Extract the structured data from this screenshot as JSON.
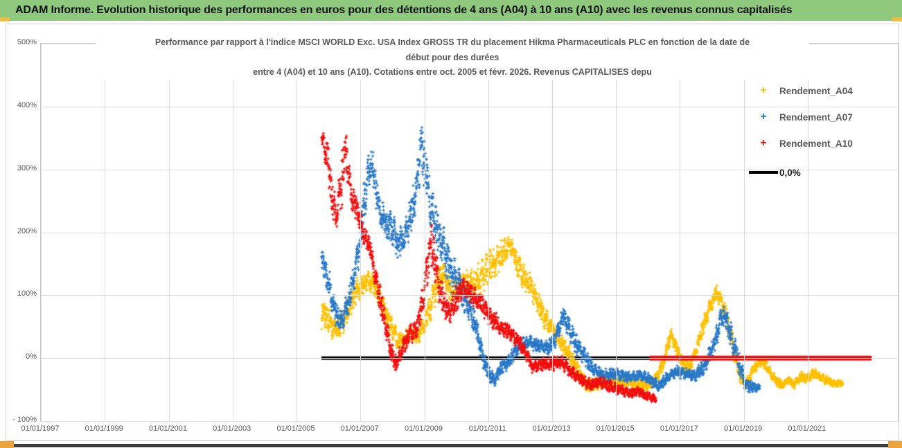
{
  "header": {
    "title": "ADAM Informe. Evolution historique des performances en euros pour des détentions de 4 ans (A04) à 10 ans (A10) avec les revenus connus capitalisés"
  },
  "chart": {
    "title_line1": "Performance par rapport à l'indice MSCI WORLD Exc. USA Index GROSS TR  du placement Hikma Pharmaceuticals PLC en fonction de la date de",
    "title_line2": "début pour des durées",
    "title_line3": "entre 4 (A04) et 10 ans (A10).  Cotations entre oct. 2005 et févr. 2026. Revenus CAPITALISES depu",
    "colors": {
      "header_green": "#8fc97e",
      "grid": "#dcdcdc",
      "axis_text": "#595959",
      "series_a04": "#FFC000",
      "series_a07": "#2878C8",
      "series_a10": "#F20D0D",
      "baseline_black": "#000000"
    }
  },
  "chart_data": {
    "type": "scatter",
    "title": "Performance par rapport à l'indice MSCI WORLD Exc. USA Index GROSS TR du placement Hikma Pharmaceuticals PLC en fonction de la date de début pour des durées entre 4 (A04) et 10 ans (A10). Cotations entre oct. 2005 et févr. 2026. Revenus CAPITALISES",
    "x_axis": {
      "ticks": [
        "01/01/1997",
        "01/01/1999",
        "01/01/2001",
        "01/01/2003",
        "01/01/2005",
        "01/01/2007",
        "01/01/2009",
        "01/01/2011",
        "01/01/2013",
        "01/01/2015",
        "01/01/2017",
        "01/01/2019",
        "01/01/2021"
      ],
      "tick_step_years": 2,
      "range_years": [
        1997.0,
        2023.82
      ],
      "grid": true
    },
    "y_axis": {
      "labels": [
        "500%",
        "400%",
        "300%",
        "200%",
        "100%",
        "0%",
        "- 100%"
      ],
      "ticks_pct": [
        500,
        400,
        300,
        200,
        100,
        0,
        -100
      ],
      "range_pct": [
        -100,
        500
      ],
      "unit": "%",
      "grid": true
    },
    "legend": [
      {
        "label": "Rendement_A04",
        "marker": "+",
        "color": "#FFC000"
      },
      {
        "label": "Rendement_A07",
        "marker": "+",
        "color": "#2878C8"
      },
      {
        "label": "Rendement_A10",
        "marker": "+",
        "color": "#F20D0D"
      },
      {
        "label": "0,0%",
        "marker": "line",
        "color": "#000000"
      }
    ],
    "legend_position": "inside-right",
    "series": [
      {
        "name": "Rendement_A04",
        "color": "#FFC000",
        "marker": "+",
        "seed": 1.3,
        "keypoints_year_centerPct_spreadPct": [
          [
            2005.79,
            75,
            30
          ],
          [
            2006.0,
            60,
            25
          ],
          [
            2006.2,
            45,
            20
          ],
          [
            2006.4,
            55,
            20
          ],
          [
            2006.6,
            75,
            25
          ],
          [
            2006.8,
            100,
            25
          ],
          [
            2007.0,
            112,
            22
          ],
          [
            2007.2,
            125,
            20
          ],
          [
            2007.4,
            118,
            20
          ],
          [
            2007.6,
            102,
            20
          ],
          [
            2007.8,
            70,
            22
          ],
          [
            2008.0,
            46,
            20
          ],
          [
            2008.2,
            25,
            15
          ],
          [
            2008.4,
            30,
            15
          ],
          [
            2008.6,
            40,
            15
          ],
          [
            2008.8,
            36,
            15
          ],
          [
            2009.0,
            52,
            20
          ],
          [
            2009.2,
            82,
            25
          ],
          [
            2009.45,
            125,
            28
          ],
          [
            2009.6,
            135,
            22
          ],
          [
            2009.8,
            106,
            20
          ],
          [
            2010.0,
            110,
            20
          ],
          [
            2010.3,
            122,
            26
          ],
          [
            2010.6,
            118,
            30
          ],
          [
            2010.9,
            138,
            30
          ],
          [
            2011.2,
            150,
            30
          ],
          [
            2011.5,
            170,
            22
          ],
          [
            2011.72,
            180,
            14
          ],
          [
            2011.9,
            150,
            25
          ],
          [
            2012.1,
            128,
            25
          ],
          [
            2012.3,
            118,
            20
          ],
          [
            2012.55,
            88,
            20
          ],
          [
            2012.8,
            62,
            20
          ],
          [
            2013.0,
            46,
            15
          ],
          [
            2013.2,
            30,
            15
          ],
          [
            2013.5,
            10,
            15
          ],
          [
            2013.8,
            -20,
            15
          ],
          [
            2014.1,
            -46,
            12
          ],
          [
            2014.4,
            -40,
            12
          ],
          [
            2014.7,
            -34,
            12
          ],
          [
            2015.0,
            -40,
            10
          ],
          [
            2015.3,
            -35,
            10
          ],
          [
            2015.6,
            -40,
            10
          ],
          [
            2015.9,
            -45,
            10
          ],
          [
            2016.2,
            -36,
            10
          ],
          [
            2016.5,
            -6,
            12
          ],
          [
            2016.7,
            38,
            14
          ],
          [
            2016.9,
            16,
            12
          ],
          [
            2017.1,
            -10,
            12
          ],
          [
            2017.3,
            -14,
            10
          ],
          [
            2017.5,
            10,
            14
          ],
          [
            2017.7,
            46,
            15
          ],
          [
            2017.9,
            76,
            15
          ],
          [
            2018.14,
            102,
            15
          ],
          [
            2018.3,
            90,
            15
          ],
          [
            2018.5,
            55,
            20
          ],
          [
            2018.7,
            10,
            20
          ],
          [
            2018.9,
            -30,
            15
          ],
          [
            2019.1,
            -42,
            10
          ],
          [
            2019.3,
            -16,
            10
          ],
          [
            2019.55,
            -5,
            9
          ],
          [
            2019.7,
            -12,
            9
          ],
          [
            2019.9,
            -30,
            9
          ],
          [
            2020.2,
            -43,
            8
          ],
          [
            2020.4,
            -34,
            8
          ],
          [
            2020.55,
            -42,
            8
          ],
          [
            2020.8,
            -30,
            8
          ],
          [
            2021.0,
            -32,
            8
          ],
          [
            2021.2,
            -24,
            8
          ],
          [
            2021.5,
            -33,
            8
          ],
          [
            2021.8,
            -40,
            7
          ],
          [
            2022.1,
            -40,
            6
          ]
        ]
      },
      {
        "name": "Rendement_A07",
        "color": "#2878C8",
        "marker": "+",
        "seed": 7.7,
        "keypoints_year_centerPct_spreadPct": [
          [
            2005.79,
            160,
            15
          ],
          [
            2006.0,
            120,
            25
          ],
          [
            2006.2,
            75,
            25
          ],
          [
            2006.4,
            55,
            20
          ],
          [
            2006.6,
            85,
            25
          ],
          [
            2006.8,
            130,
            30
          ],
          [
            2007.0,
            185,
            32
          ],
          [
            2007.15,
            260,
            42
          ],
          [
            2007.3,
            310,
            32
          ],
          [
            2007.45,
            285,
            32
          ],
          [
            2007.6,
            232,
            28
          ],
          [
            2007.8,
            215,
            25
          ],
          [
            2008.0,
            205,
            30
          ],
          [
            2008.2,
            182,
            26
          ],
          [
            2008.4,
            196,
            30
          ],
          [
            2008.6,
            232,
            34
          ],
          [
            2008.75,
            268,
            36
          ],
          [
            2008.88,
            340,
            55
          ],
          [
            2009.05,
            300,
            48
          ],
          [
            2009.2,
            240,
            42
          ],
          [
            2009.35,
            212,
            38
          ],
          [
            2009.5,
            192,
            34
          ],
          [
            2009.7,
            160,
            40
          ],
          [
            2009.9,
            132,
            30
          ],
          [
            2010.1,
            120,
            30
          ],
          [
            2010.3,
            92,
            26
          ],
          [
            2010.5,
            70,
            24
          ],
          [
            2010.7,
            30,
            22
          ],
          [
            2010.85,
            0,
            20
          ],
          [
            2011.0,
            -25,
            15
          ],
          [
            2011.2,
            -35,
            12
          ],
          [
            2011.4,
            -16,
            12
          ],
          [
            2011.6,
            -8,
            12
          ],
          [
            2011.8,
            8,
            14
          ],
          [
            2012.0,
            20,
            12
          ],
          [
            2012.3,
            25,
            12
          ],
          [
            2012.6,
            20,
            12
          ],
          [
            2012.9,
            16,
            14
          ],
          [
            2013.1,
            32,
            15
          ],
          [
            2013.35,
            68,
            16
          ],
          [
            2013.55,
            45,
            20
          ],
          [
            2013.75,
            22,
            20
          ],
          [
            2014.0,
            5,
            16
          ],
          [
            2014.3,
            -18,
            12
          ],
          [
            2014.6,
            -28,
            11
          ],
          [
            2015.0,
            -25,
            10
          ],
          [
            2015.4,
            -30,
            10
          ],
          [
            2015.8,
            -28,
            10
          ],
          [
            2016.1,
            -35,
            10
          ],
          [
            2016.35,
            -45,
            10
          ],
          [
            2016.6,
            -30,
            10
          ],
          [
            2016.9,
            -22,
            10
          ],
          [
            2017.2,
            -25,
            10
          ],
          [
            2017.5,
            -28,
            10
          ],
          [
            2017.8,
            -10,
            15
          ],
          [
            2018.1,
            25,
            20
          ],
          [
            2018.3,
            68,
            20
          ],
          [
            2018.45,
            62,
            18
          ],
          [
            2018.65,
            25,
            24
          ],
          [
            2018.9,
            -18,
            20
          ],
          [
            2019.1,
            -44,
            12
          ],
          [
            2019.3,
            -46,
            10
          ],
          [
            2019.5,
            -48,
            8
          ]
        ]
      },
      {
        "name": "Rendement_A10",
        "color": "#F20D0D",
        "marker": "+",
        "seed": 3.1,
        "keypoints_year_centerPct_spreadPct": [
          [
            2005.79,
            350,
            22
          ],
          [
            2005.95,
            330,
            38
          ],
          [
            2006.1,
            258,
            34
          ],
          [
            2006.25,
            226,
            24
          ],
          [
            2006.45,
            300,
            55
          ],
          [
            2006.55,
            330,
            42
          ],
          [
            2006.7,
            262,
            30
          ],
          [
            2006.9,
            236,
            20
          ],
          [
            2007.1,
            196,
            20
          ],
          [
            2007.3,
            176,
            15
          ],
          [
            2007.5,
            122,
            24
          ],
          [
            2007.75,
            62,
            24
          ],
          [
            2007.95,
            12,
            20
          ],
          [
            2008.1,
            -10,
            15
          ],
          [
            2008.25,
            6,
            15
          ],
          [
            2008.5,
            35,
            18
          ],
          [
            2008.75,
            46,
            18
          ],
          [
            2008.95,
            92,
            28
          ],
          [
            2009.1,
            152,
            42
          ],
          [
            2009.2,
            185,
            42
          ],
          [
            2009.35,
            150,
            35
          ],
          [
            2009.5,
            102,
            26
          ],
          [
            2009.75,
            72,
            20
          ],
          [
            2010.0,
            92,
            24
          ],
          [
            2010.2,
            114,
            16
          ],
          [
            2010.5,
            100,
            18
          ],
          [
            2010.8,
            86,
            18
          ],
          [
            2011.1,
            64,
            16
          ],
          [
            2011.4,
            48,
            15
          ],
          [
            2011.7,
            40,
            13
          ],
          [
            2011.95,
            26,
            13
          ],
          [
            2012.15,
            10,
            12
          ],
          [
            2012.4,
            -15,
            11
          ],
          [
            2012.7,
            -8,
            11
          ],
          [
            2013.0,
            -10,
            12
          ],
          [
            2013.3,
            -6,
            12
          ],
          [
            2013.6,
            -22,
            11
          ],
          [
            2013.9,
            -34,
            10
          ],
          [
            2014.2,
            -42,
            10
          ],
          [
            2014.5,
            -38,
            10
          ],
          [
            2014.8,
            -45,
            10
          ],
          [
            2015.1,
            -50,
            9
          ],
          [
            2015.45,
            -56,
            8
          ],
          [
            2015.7,
            -52,
            8
          ],
          [
            2015.95,
            -60,
            8
          ],
          [
            2016.25,
            -66,
            7
          ]
        ]
      }
    ],
    "baseline": {
      "name": "0,0%",
      "color": "#000000",
      "value_pct": 0,
      "from_year": 2005.78,
      "to_year": 2016.1,
      "thickness_px": 5
    },
    "zero_flat_segment": {
      "series": "Rendement_A10",
      "color": "#F20D0D",
      "value_pct": 0,
      "from_year": 2016.05,
      "to_year": 2023.0,
      "thickness_px": 7
    }
  }
}
